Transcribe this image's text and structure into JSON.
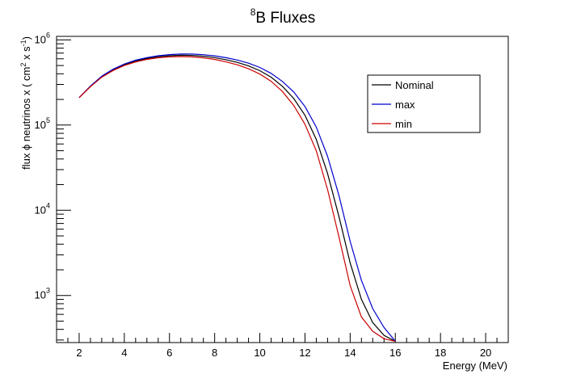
{
  "chart_data": {
    "type": "line",
    "title": {
      "superscript": "8",
      "text": "B Fluxes"
    },
    "xlabel": "Energy (MeV)",
    "ylabel": {
      "prefix": "flux ",
      "phi": "ϕ",
      "middle": " neutrinos x ( cm",
      "sup1": "2",
      "middle2": " x s",
      "sup2": "-1",
      "suffix": ")"
    },
    "xlim": [
      1,
      21
    ],
    "ylim": [
      280,
      1100000
    ],
    "yscale": "log",
    "grid": false,
    "legend_placement": "top-right",
    "x_ticks": [
      2,
      4,
      6,
      8,
      10,
      12,
      14,
      16,
      18,
      20
    ],
    "x_tick_labels": [
      "2",
      "4",
      "6",
      "8",
      "10",
      "12",
      "14",
      "16",
      "18",
      "20"
    ],
    "y_ticks": [
      {
        "value": 1000,
        "base": "10",
        "exp": "3"
      },
      {
        "value": 10000,
        "base": "10",
        "exp": "4"
      },
      {
        "value": 100000,
        "base": "10",
        "exp": "5"
      },
      {
        "value": 1000000,
        "base": "10",
        "exp": "6"
      }
    ],
    "x": [
      2,
      2.5,
      3,
      3.5,
      4,
      4.5,
      5,
      5.5,
      6,
      6.5,
      7,
      7.5,
      8,
      8.5,
      9,
      9.5,
      10,
      10.5,
      11,
      11.5,
      12,
      12.5,
      13,
      13.5,
      14,
      14.5,
      15,
      15.5,
      16
    ],
    "series": [
      {
        "name": "Nominal",
        "color": "#000000",
        "values": [
          210000,
          285000,
          370000,
          445000,
          510000,
          565000,
          605000,
          635000,
          652000,
          660000,
          657000,
          643000,
          620000,
          585000,
          545000,
          495000,
          435000,
          365000,
          285000,
          205000,
          130000,
          68000,
          27000,
          8500,
          2400,
          900,
          480,
          340,
          290
        ]
      },
      {
        "name": "max",
        "color": "#0000cc",
        "values": [
          210000,
          287000,
          375000,
          452000,
          520000,
          578000,
          620000,
          652000,
          672000,
          682000,
          682000,
          670000,
          650000,
          618000,
          580000,
          533000,
          475000,
          405000,
          325000,
          245000,
          165000,
          95000,
          43000,
          15000,
          4300,
          1500,
          700,
          420,
          290
        ]
      },
      {
        "name": "min",
        "color": "#cc0000",
        "values": [
          210000,
          282000,
          364000,
          437000,
          500000,
          551000,
          590000,
          617000,
          632000,
          637000,
          632000,
          615000,
          590000,
          552000,
          510000,
          458000,
          397000,
          327000,
          248000,
          170000,
          102000,
          50000,
          17500,
          4900,
          1300,
          560,
          380,
          310,
          290
        ]
      }
    ]
  }
}
